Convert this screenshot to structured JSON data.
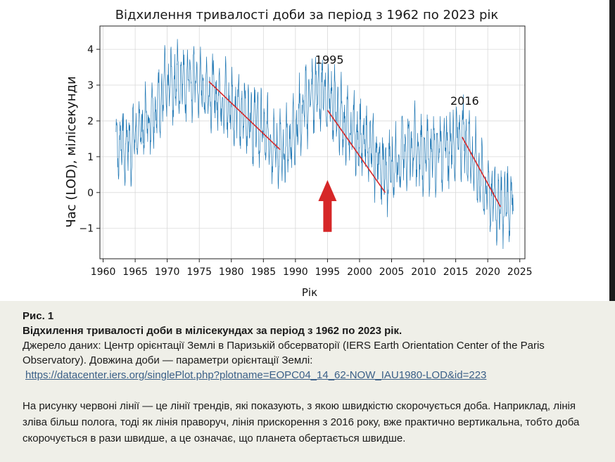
{
  "chart_data": {
    "type": "line",
    "title": "Відхилення тривалості доби за період з 1962 по 2023 рік",
    "ylabel": "Час (LOD), мілісекунди",
    "xlabel": "Рік",
    "xlim": [
      1959.5,
      2025.8
    ],
    "ylim": [
      -1.85,
      4.65
    ],
    "x_ticks": [
      1960,
      1965,
      1970,
      1975,
      1980,
      1985,
      1990,
      1995,
      2000,
      2005,
      2010,
      2015,
      2020,
      2025
    ],
    "y_ticks": [
      -1,
      0,
      1,
      2,
      3,
      4
    ],
    "y_tick_labels": [
      "−1",
      "0",
      "1",
      "2",
      "3",
      "4"
    ],
    "grid": true,
    "series": [
      {
        "color": "#1f77b4",
        "x": [
          1962,
          1964,
          1966,
          1968,
          1970,
          1972,
          1974,
          1976,
          1978,
          1980,
          1982,
          1984,
          1986,
          1988,
          1990,
          1992,
          1994,
          1995,
          1996,
          1998,
          2000,
          2002,
          2004,
          2006,
          2008,
          2010,
          2012,
          2014,
          2016,
          2018,
          2020,
          2022,
          2024
        ],
        "y": [
          1.4,
          1.3,
          1.8,
          2.3,
          2.9,
          3.2,
          3.1,
          2.9,
          2.7,
          2.4,
          2.2,
          1.9,
          1.5,
          1.0,
          1.8,
          2.6,
          2.9,
          2.7,
          2.4,
          1.8,
          1.5,
          1.2,
          0.5,
          0.9,
          1.3,
          1.0,
          1.2,
          1.3,
          1.6,
          0.8,
          0.0,
          -0.4,
          -0.1
        ],
        "oscillation_amplitude": 0.9
      }
    ],
    "trend_lines": [
      {
        "color": "#d62728",
        "x": [
          1976.5,
          1987.6
        ],
        "y": [
          3.1,
          1.2
        ]
      },
      {
        "color": "#d62728",
        "x": [
          1995.0,
          2004.0
        ],
        "y": [
          2.3,
          0.0
        ]
      },
      {
        "color": "#d62728",
        "x": [
          2016.0,
          2022.0
        ],
        "y": [
          1.55,
          -0.4
        ]
      }
    ],
    "annotations": [
      {
        "text": "1995",
        "x": 1995.3,
        "y": 3.6
      },
      {
        "text": "2016",
        "x": 2016.4,
        "y": 2.45
      }
    ],
    "arrow": {
      "color": "#d62728",
      "x": 1995.0,
      "y_from": -1.1,
      "y_to": 0.35
    }
  },
  "caption": {
    "label": "Рис. 1",
    "title": "Відхилення тривалості доби в мілісекундах за період з 1962 по 2023 рік.",
    "source": "Джерело даних: Центр орієнтації Землі в Паризькій обсерваторії (IERS Earth Orientation Center of the Paris Observatory). Довжина доби — параметри орієнтації Землі:",
    "link": "https://datacenter.iers.org/singlePlot.php?plotname=EOPC04_14_62-NOW_IAU1980-LOD&id=223",
    "note": "На рисунку червоні лінії — це лінії трендів, які показують, з якою швидкістю скорочується доба. Наприклад, лінія зліва більш полога, тоді як лінія праворуч, лінія прискорення з 2016 року, вже практично вертикальна, тобто доба скорочується в рази швидше, а це означає, що планета обертається швидше."
  }
}
